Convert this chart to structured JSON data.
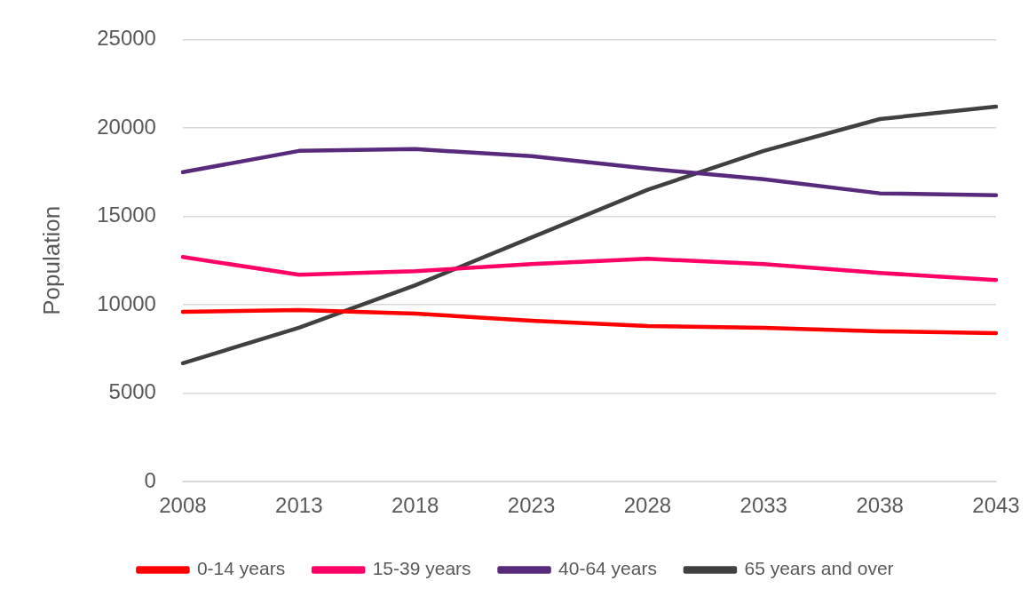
{
  "chart_data": {
    "type": "line",
    "ylabel": "Population",
    "categories": [
      "2008",
      "2013",
      "2018",
      "2023",
      "2028",
      "2033",
      "2038",
      "2043"
    ],
    "series": [
      {
        "name": "0-14 years",
        "color": "#ff0000",
        "values": [
          9600,
          9700,
          9500,
          9100,
          8800,
          8700,
          8500,
          8400
        ]
      },
      {
        "name": "15-39 years",
        "color": "#ff0066",
        "values": [
          12700,
          11700,
          11900,
          12300,
          12600,
          12300,
          11800,
          11400
        ]
      },
      {
        "name": "40-64 years",
        "color": "#582a7c",
        "values": [
          17500,
          18700,
          18800,
          18400,
          17700,
          17100,
          16300,
          16200
        ]
      },
      {
        "name": "65 years and over",
        "color": "#404040",
        "values": [
          6700,
          8700,
          11100,
          13800,
          16500,
          18700,
          20500,
          21200
        ]
      }
    ],
    "ylim": [
      0,
      25000
    ],
    "yticks": [
      0,
      5000,
      10000,
      15000,
      20000,
      25000
    ],
    "grid": "y",
    "legend": "bottom",
    "marker": "none",
    "line_style": "solid"
  }
}
